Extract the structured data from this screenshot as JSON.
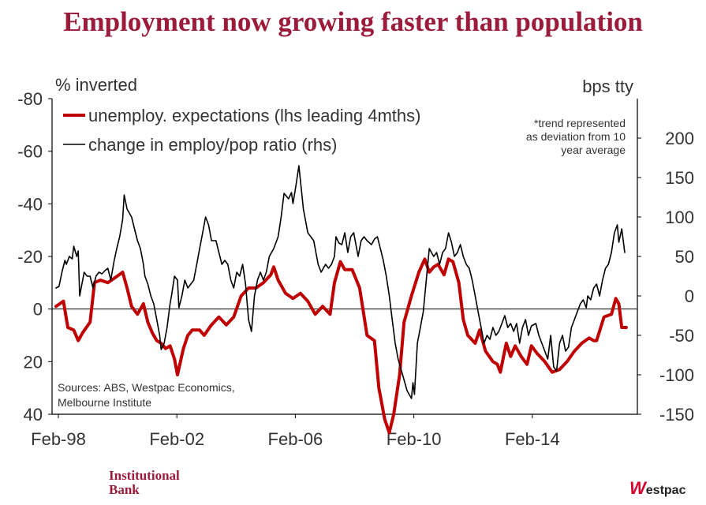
{
  "title": "Employment now growing faster than population",
  "chart_data": {
    "type": "line",
    "left_axis_label": "% inverted",
    "right_axis_label": "bps tty",
    "left_ylim": [
      40,
      -80
    ],
    "left_inverted": true,
    "left_ticks": [
      "-80",
      "-60",
      "-40",
      "-20",
      "0",
      "20",
      "40"
    ],
    "right_ylim": [
      -150,
      250
    ],
    "right_ticks": [
      "200",
      "150",
      "100",
      "50",
      "0",
      "-50",
      "-100",
      "-150"
    ],
    "x_range": [
      1998.08,
      2017.2
    ],
    "x_ticks": [
      {
        "label": "Feb-98",
        "x": 1998.08
      },
      {
        "label": "Feb-02",
        "x": 2002.08
      },
      {
        "label": "Feb-06",
        "x": 2006.08
      },
      {
        "label": "Feb-10",
        "x": 2010.08
      },
      {
        "label": "Feb-14",
        "x": 2014.08
      }
    ],
    "legend_placement": "top-left",
    "note": "*trend represented as deviation from 10 year average",
    "note_lines": [
      "*trend represented",
      "as deviation from 10",
      "year average"
    ],
    "sources_lines": [
      "Sources: ABS, Westpac Economics,",
      "Melbourne Institute"
    ],
    "series": [
      {
        "name": "unemploy. expectations (lhs leading 4mths)",
        "axis": "left",
        "color": "#c00000",
        "points": [
          [
            1998.0,
            -1
          ],
          [
            1998.25,
            -3
          ],
          [
            1998.4,
            7
          ],
          [
            1998.6,
            8
          ],
          [
            1998.75,
            12
          ],
          [
            1998.9,
            9
          ],
          [
            1999.15,
            5
          ],
          [
            1999.3,
            -10
          ],
          [
            1999.5,
            -11
          ],
          [
            1999.75,
            -10
          ],
          [
            2000.0,
            -12
          ],
          [
            2000.25,
            -14
          ],
          [
            2000.4,
            -8
          ],
          [
            2000.55,
            -1
          ],
          [
            2000.75,
            2
          ],
          [
            2000.95,
            -2
          ],
          [
            2001.1,
            5
          ],
          [
            2001.25,
            9
          ],
          [
            2001.4,
            12
          ],
          [
            2001.55,
            13
          ],
          [
            2001.7,
            15
          ],
          [
            2001.85,
            14
          ],
          [
            2002.0,
            19
          ],
          [
            2002.1,
            25
          ],
          [
            2002.3,
            15
          ],
          [
            2002.45,
            10
          ],
          [
            2002.6,
            8
          ],
          [
            2002.85,
            8
          ],
          [
            2003.0,
            10
          ],
          [
            2003.25,
            6
          ],
          [
            2003.5,
            3
          ],
          [
            2003.75,
            6
          ],
          [
            2004.0,
            3
          ],
          [
            2004.25,
            -5
          ],
          [
            2004.5,
            -8
          ],
          [
            2004.75,
            -8
          ],
          [
            2005.0,
            -10
          ],
          [
            2005.25,
            -13
          ],
          [
            2005.35,
            -16
          ],
          [
            2005.5,
            -11
          ],
          [
            2005.75,
            -6
          ],
          [
            2006.0,
            -4
          ],
          [
            2006.25,
            -6
          ],
          [
            2006.5,
            -3
          ],
          [
            2006.75,
            2
          ],
          [
            2007.0,
            -1
          ],
          [
            2007.25,
            2
          ],
          [
            2007.4,
            -10
          ],
          [
            2007.6,
            -18
          ],
          [
            2007.75,
            -15
          ],
          [
            2008.0,
            -15
          ],
          [
            2008.25,
            -8
          ],
          [
            2008.5,
            10
          ],
          [
            2008.75,
            12
          ],
          [
            2008.9,
            30
          ],
          [
            2009.1,
            42
          ],
          [
            2009.25,
            47
          ],
          [
            2009.4,
            40
          ],
          [
            2009.6,
            25
          ],
          [
            2009.75,
            5
          ],
          [
            2010.0,
            -5
          ],
          [
            2010.25,
            -14
          ],
          [
            2010.45,
            -19
          ],
          [
            2010.6,
            -14
          ],
          [
            2010.75,
            -16
          ],
          [
            2010.9,
            -17
          ],
          [
            2011.1,
            -13
          ],
          [
            2011.25,
            -19
          ],
          [
            2011.4,
            -18
          ],
          [
            2011.6,
            -10
          ],
          [
            2011.75,
            4
          ],
          [
            2011.9,
            10
          ],
          [
            2012.15,
            13
          ],
          [
            2012.3,
            8
          ],
          [
            2012.5,
            16
          ],
          [
            2012.75,
            20
          ],
          [
            2012.9,
            21
          ],
          [
            2013.0,
            24
          ],
          [
            2013.2,
            13
          ],
          [
            2013.35,
            18
          ],
          [
            2013.5,
            14
          ],
          [
            2013.7,
            18
          ],
          [
            2013.9,
            21
          ],
          [
            2014.05,
            14
          ],
          [
            2014.25,
            17
          ],
          [
            2014.5,
            20
          ],
          [
            2014.75,
            24
          ],
          [
            2015.0,
            23
          ],
          [
            2015.25,
            20
          ],
          [
            2015.5,
            16
          ],
          [
            2015.75,
            13
          ],
          [
            2016.0,
            11
          ],
          [
            2016.15,
            12
          ],
          [
            2016.25,
            12
          ],
          [
            2016.5,
            3
          ],
          [
            2016.75,
            2
          ],
          [
            2016.9,
            -4
          ],
          [
            2017.0,
            -2
          ],
          [
            2017.1,
            7
          ],
          [
            2017.25,
            7
          ]
        ]
      },
      {
        "name": "change in employ/pop ratio (rhs)",
        "axis": "right",
        "color": "#000000",
        "points": [
          [
            1998.0,
            10
          ],
          [
            1998.1,
            12
          ],
          [
            1998.2,
            30
          ],
          [
            1998.3,
            45
          ],
          [
            1998.35,
            40
          ],
          [
            1998.45,
            50
          ],
          [
            1998.55,
            47
          ],
          [
            1998.6,
            63
          ],
          [
            1998.7,
            50
          ],
          [
            1998.75,
            57
          ],
          [
            1998.8,
            0
          ],
          [
            1998.95,
            30
          ],
          [
            1999.05,
            25
          ],
          [
            1999.15,
            25
          ],
          [
            1999.25,
            10
          ],
          [
            1999.35,
            25
          ],
          [
            1999.45,
            30
          ],
          [
            1999.55,
            28
          ],
          [
            1999.65,
            32
          ],
          [
            1999.75,
            35
          ],
          [
            1999.85,
            20
          ],
          [
            1999.95,
            42
          ],
          [
            2000.05,
            60
          ],
          [
            2000.15,
            75
          ],
          [
            2000.25,
            97
          ],
          [
            2000.3,
            128
          ],
          [
            2000.4,
            110
          ],
          [
            2000.55,
            100
          ],
          [
            2000.65,
            85
          ],
          [
            2000.75,
            70
          ],
          [
            2000.85,
            60
          ],
          [
            2000.95,
            40
          ],
          [
            2001.0,
            25
          ],
          [
            2001.1,
            15
          ],
          [
            2001.2,
            0
          ],
          [
            2001.3,
            -10
          ],
          [
            2001.4,
            -30
          ],
          [
            2001.5,
            -50
          ],
          [
            2001.55,
            -68
          ],
          [
            2001.65,
            -60
          ],
          [
            2001.75,
            -40
          ],
          [
            2001.85,
            -10
          ],
          [
            2001.9,
            0
          ],
          [
            2002.0,
            25
          ],
          [
            2002.1,
            20
          ],
          [
            2002.15,
            -15
          ],
          [
            2002.25,
            0
          ],
          [
            2002.35,
            20
          ],
          [
            2002.45,
            10
          ],
          [
            2002.55,
            15
          ],
          [
            2002.65,
            20
          ],
          [
            2002.75,
            40
          ],
          [
            2002.85,
            60
          ],
          [
            2002.95,
            80
          ],
          [
            2003.05,
            100
          ],
          [
            2003.15,
            90
          ],
          [
            2003.25,
            70
          ],
          [
            2003.4,
            70
          ],
          [
            2003.5,
            55
          ],
          [
            2003.6,
            40
          ],
          [
            2003.7,
            45
          ],
          [
            2003.8,
            40
          ],
          [
            2003.9,
            20
          ],
          [
            2004.0,
            10
          ],
          [
            2004.1,
            30
          ],
          [
            2004.2,
            25
          ],
          [
            2004.3,
            40
          ],
          [
            2004.4,
            15
          ],
          [
            2004.5,
            -30
          ],
          [
            2004.6,
            -45
          ],
          [
            2004.7,
            0
          ],
          [
            2004.8,
            20
          ],
          [
            2004.9,
            30
          ],
          [
            2005.0,
            20
          ],
          [
            2005.1,
            30
          ],
          [
            2005.2,
            50
          ],
          [
            2005.35,
            60
          ],
          [
            2005.5,
            75
          ],
          [
            2005.6,
            100
          ],
          [
            2005.7,
            130
          ],
          [
            2005.85,
            123
          ],
          [
            2005.95,
            131
          ],
          [
            2006.0,
            117
          ],
          [
            2006.1,
            140
          ],
          [
            2006.2,
            165
          ],
          [
            2006.35,
            110
          ],
          [
            2006.5,
            80
          ],
          [
            2006.7,
            70
          ],
          [
            2006.85,
            40
          ],
          [
            2006.95,
            30
          ],
          [
            2007.1,
            40
          ],
          [
            2007.2,
            35
          ],
          [
            2007.3,
            40
          ],
          [
            2007.4,
            50
          ],
          [
            2007.45,
            75
          ],
          [
            2007.55,
            67
          ],
          [
            2007.65,
            65
          ],
          [
            2007.75,
            80
          ],
          [
            2007.85,
            55
          ],
          [
            2007.95,
            75
          ],
          [
            2008.05,
            80
          ],
          [
            2008.2,
            50
          ],
          [
            2008.3,
            70
          ],
          [
            2008.4,
            75
          ],
          [
            2008.5,
            70
          ],
          [
            2008.65,
            65
          ],
          [
            2008.75,
            72
          ],
          [
            2008.85,
            75
          ],
          [
            2008.95,
            60
          ],
          [
            2009.05,
            45
          ],
          [
            2009.15,
            25
          ],
          [
            2009.25,
            0
          ],
          [
            2009.35,
            -30
          ],
          [
            2009.45,
            -60
          ],
          [
            2009.55,
            -80
          ],
          [
            2009.7,
            -100
          ],
          [
            2009.85,
            -120
          ],
          [
            2010.0,
            -130
          ],
          [
            2010.05,
            -110
          ],
          [
            2010.1,
            -125
          ],
          [
            2010.2,
            -60
          ],
          [
            2010.3,
            -40
          ],
          [
            2010.4,
            -20
          ],
          [
            2010.5,
            20
          ],
          [
            2010.6,
            60
          ],
          [
            2010.75,
            50
          ],
          [
            2010.85,
            55
          ],
          [
            2010.95,
            40
          ],
          [
            2011.05,
            55
          ],
          [
            2011.15,
            60
          ],
          [
            2011.25,
            80
          ],
          [
            2011.35,
            68
          ],
          [
            2011.45,
            50
          ],
          [
            2011.55,
            55
          ],
          [
            2011.65,
            65
          ],
          [
            2011.75,
            50
          ],
          [
            2011.85,
            40
          ],
          [
            2011.95,
            35
          ],
          [
            2012.05,
            20
          ],
          [
            2012.15,
            0
          ],
          [
            2012.25,
            -20
          ],
          [
            2012.35,
            -40
          ],
          [
            2012.45,
            -60
          ],
          [
            2012.55,
            -50
          ],
          [
            2012.65,
            -55
          ],
          [
            2012.75,
            -40
          ],
          [
            2012.85,
            -50
          ],
          [
            2012.95,
            -45
          ],
          [
            2013.05,
            -35
          ],
          [
            2013.15,
            -25
          ],
          [
            2013.25,
            -40
          ],
          [
            2013.35,
            -35
          ],
          [
            2013.45,
            -45
          ],
          [
            2013.55,
            -35
          ],
          [
            2013.65,
            -60
          ],
          [
            2013.75,
            -40
          ],
          [
            2013.85,
            -30
          ],
          [
            2013.95,
            -50
          ],
          [
            2014.05,
            -38
          ],
          [
            2014.2,
            -35
          ],
          [
            2014.3,
            -50
          ],
          [
            2014.4,
            -60
          ],
          [
            2014.5,
            -70
          ],
          [
            2014.6,
            -80
          ],
          [
            2014.7,
            -50
          ],
          [
            2014.8,
            -90
          ],
          [
            2014.9,
            -95
          ],
          [
            2015.0,
            -60
          ],
          [
            2015.1,
            -50
          ],
          [
            2015.2,
            -70
          ],
          [
            2015.3,
            -65
          ],
          [
            2015.4,
            -40
          ],
          [
            2015.5,
            -30
          ],
          [
            2015.6,
            -20
          ],
          [
            2015.7,
            -10
          ],
          [
            2015.8,
            -5
          ],
          [
            2015.9,
            -15
          ],
          [
            2015.95,
            0
          ],
          [
            2016.05,
            -5
          ],
          [
            2016.15,
            10
          ],
          [
            2016.25,
            15
          ],
          [
            2016.35,
            0
          ],
          [
            2016.45,
            20
          ],
          [
            2016.55,
            35
          ],
          [
            2016.65,
            40
          ],
          [
            2016.75,
            55
          ],
          [
            2016.85,
            80
          ],
          [
            2016.95,
            90
          ],
          [
            2017.0,
            68
          ],
          [
            2017.1,
            85
          ],
          [
            2017.2,
            55
          ]
        ]
      }
    ]
  },
  "brand": {
    "left_line1": "Institutional",
    "left_line2": "Bank",
    "right_initial": "W",
    "right_rest": "estpac"
  }
}
